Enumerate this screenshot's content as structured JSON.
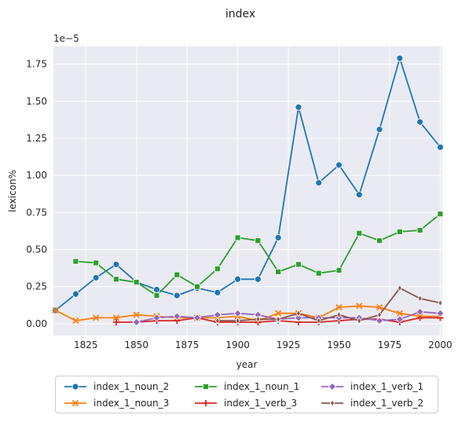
{
  "chart_data": {
    "type": "line",
    "title": "index",
    "xlabel": "year",
    "ylabel": "lexicon%",
    "y_scale_label": "1e−5",
    "xlim": [
      1809,
      2001
    ],
    "ylim": [
      -0.08,
      1.87
    ],
    "x_ticks": [
      1825,
      1850,
      1875,
      1900,
      1925,
      1950,
      1975,
      2000
    ],
    "y_ticks": [
      0.0,
      0.25,
      0.5,
      0.75,
      1.0,
      1.25,
      1.5,
      1.75
    ],
    "y_tick_labels": [
      "0.00",
      "0.25",
      "0.50",
      "0.75",
      "1.00",
      "1.25",
      "1.50",
      "1.75"
    ],
    "grid": true,
    "legend_position": "bottom",
    "series": [
      {
        "name": "index_1_noun_2",
        "color": "#1f77b4",
        "marker": "circle",
        "x": [
          1810,
          1820,
          1830,
          1840,
          1850,
          1860,
          1870,
          1880,
          1890,
          1900,
          1910,
          1920,
          1930,
          1940,
          1950,
          1960,
          1970,
          1980,
          1990,
          2000
        ],
        "y": [
          0.09,
          0.2,
          0.31,
          0.4,
          0.28,
          0.23,
          0.19,
          0.24,
          0.21,
          0.3,
          0.3,
          0.58,
          1.46,
          0.95,
          1.07,
          0.87,
          1.31,
          1.79,
          1.36,
          1.19
        ]
      },
      {
        "name": "index_1_noun_3",
        "color": "#ff7f0e",
        "marker": "x",
        "x": [
          1810,
          1820,
          1830,
          1840,
          1850,
          1860,
          1870,
          1880,
          1890,
          1900,
          1910,
          1920,
          1930,
          1940,
          1950,
          1960,
          1970,
          1980,
          1990,
          2000
        ],
        "y": [
          0.09,
          0.02,
          0.04,
          0.04,
          0.06,
          0.05,
          0.04,
          0.04,
          0.04,
          0.05,
          0.02,
          0.07,
          0.07,
          0.04,
          0.11,
          0.12,
          0.11,
          0.07,
          0.05,
          0.05
        ]
      },
      {
        "name": "index_1_noun_1",
        "color": "#2ca02c",
        "marker": "square",
        "x": [
          1820,
          1830,
          1840,
          1850,
          1860,
          1870,
          1880,
          1890,
          1900,
          1910,
          1920,
          1930,
          1940,
          1950,
          1960,
          1970,
          1980,
          1990,
          2000
        ],
        "y": [
          0.42,
          0.41,
          0.3,
          0.28,
          0.19,
          0.33,
          0.25,
          0.37,
          0.58,
          0.56,
          0.35,
          0.4,
          0.34,
          0.36,
          0.61,
          0.56,
          0.62,
          0.63,
          0.74
        ]
      },
      {
        "name": "index_1_verb_3",
        "color": "#d62728",
        "marker": "plus",
        "x": [
          1840,
          1850,
          1860,
          1870,
          1880,
          1890,
          1900,
          1910,
          1920,
          1930,
          1940,
          1950,
          1960,
          1970,
          1980,
          1990,
          2000
        ],
        "y": [
          0.01,
          0.01,
          0.02,
          0.02,
          0.04,
          0.01,
          0.01,
          0.01,
          0.02,
          0.01,
          0.01,
          0.02,
          0.03,
          0.03,
          0.01,
          0.04,
          0.04
        ]
      },
      {
        "name": "index_1_verb_1",
        "color": "#9467bd",
        "marker": "diamond",
        "x": [
          1850,
          1860,
          1870,
          1880,
          1890,
          1900,
          1910,
          1920,
          1930,
          1940,
          1950,
          1960,
          1970,
          1980,
          1990,
          2000
        ],
        "y": [
          0.01,
          0.04,
          0.05,
          0.04,
          0.06,
          0.07,
          0.06,
          0.03,
          0.04,
          0.04,
          0.04,
          0.04,
          0.02,
          0.03,
          0.08,
          0.07
        ]
      },
      {
        "name": "index_1_verb_2",
        "color": "#8c564b",
        "marker": "thin-diamond",
        "x": [
          1890,
          1900,
          1910,
          1920,
          1930,
          1940,
          1950,
          1960,
          1970,
          1980,
          1990,
          2000
        ],
        "y": [
          0.02,
          0.02,
          0.03,
          0.03,
          0.07,
          0.02,
          0.06,
          0.02,
          0.06,
          0.24,
          0.17,
          0.14
        ]
      }
    ]
  }
}
